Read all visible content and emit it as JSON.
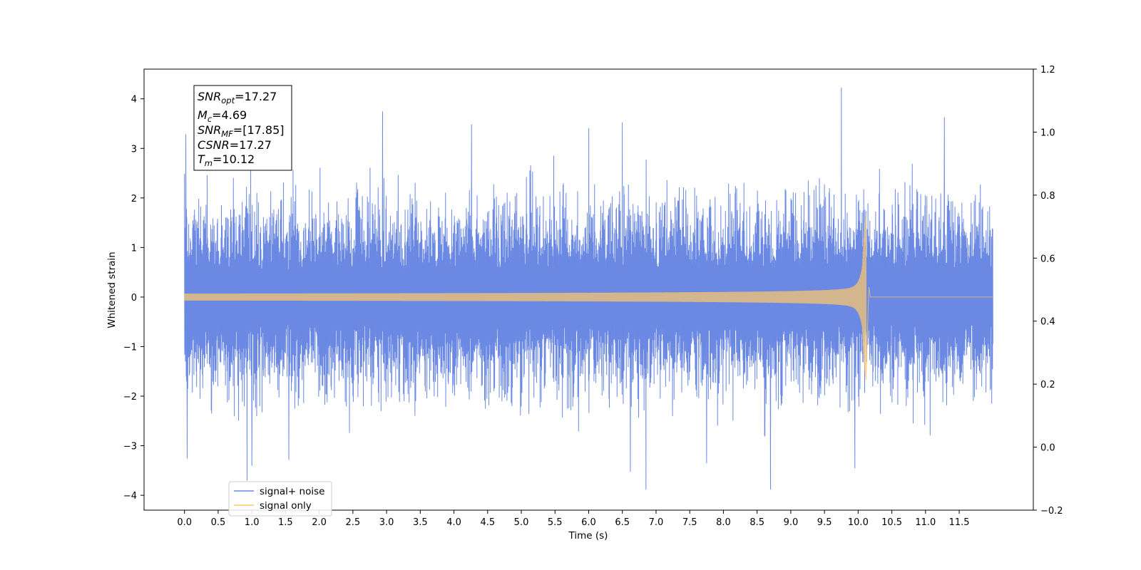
{
  "chart_data": {
    "type": "line",
    "xlabel": "Time (s)",
    "ylabel": "Whitened strain",
    "xlim": [
      -0.6,
      12.6
    ],
    "ylim": [
      -4.3,
      4.6
    ],
    "y2lim": [
      -0.2,
      1.2
    ],
    "x_ticks": [
      "0.0",
      "0.5",
      "1.0",
      "1.5",
      "2.0",
      "2.5",
      "3.0",
      "3.5",
      "4.0",
      "4.5",
      "5.0",
      "5.5",
      "6.0",
      "6.5",
      "7.0",
      "7.5",
      "8.0",
      "8.5",
      "9.0",
      "9.5",
      "10.0",
      "10.5",
      "11.0",
      "11.5"
    ],
    "y_ticks": [
      "−4",
      "−3",
      "−2",
      "−1",
      "0",
      "1",
      "2",
      "3",
      "4"
    ],
    "y2_ticks": [
      "−0.2",
      "0.0",
      "0.2",
      "0.4",
      "0.6",
      "0.8",
      "1.0",
      "1.2"
    ],
    "grid": false,
    "legend_position": "lower-left",
    "series": [
      {
        "name": "signal+ noise",
        "color": "#6b89e3",
        "kind": "noise",
        "x_start": 0.0,
        "x_end": 12.0,
        "typical_envelope": 2.0,
        "extreme_points": [
          {
            "x": 0.02,
            "y": 3.28
          },
          {
            "x": 0.04,
            "y": -3.25
          },
          {
            "x": 0.93,
            "y": -3.7
          },
          {
            "x": 1.0,
            "y": -3.4
          },
          {
            "x": 1.55,
            "y": -3.28
          },
          {
            "x": 2.94,
            "y": 3.74
          },
          {
            "x": 4.26,
            "y": 3.48
          },
          {
            "x": 6.0,
            "y": 3.4
          },
          {
            "x": 6.5,
            "y": 3.52
          },
          {
            "x": 6.62,
            "y": -3.52
          },
          {
            "x": 6.85,
            "y": -3.88
          },
          {
            "x": 7.75,
            "y": -3.35
          },
          {
            "x": 8.7,
            "y": -3.88
          },
          {
            "x": 9.75,
            "y": 4.22
          },
          {
            "x": 9.95,
            "y": -3.45
          },
          {
            "x": 11.28,
            "y": 3.62
          }
        ]
      },
      {
        "name": "signal only",
        "color": "#ffc76a",
        "kind": "chirp",
        "x_start": 0.0,
        "x_merge": 10.12,
        "x_end": 12.0,
        "initial_amplitude": 0.07,
        "peak_amplitude": 1.68
      }
    ],
    "annotations": {
      "snr_opt": {
        "base": "SNR",
        "sub": "opt",
        "value": "=17.27"
      },
      "mc": {
        "base": "M",
        "sub": "c",
        "value": "=4.69"
      },
      "snr_mf": {
        "base": "SNR",
        "sub": "MF",
        "value": "=[17.85]"
      },
      "csnr": {
        "base": "CSNR",
        "sub": "",
        "value": "=17.27"
      },
      "tm": {
        "base": "T",
        "sub": "m",
        "value": "=10.12"
      }
    }
  }
}
